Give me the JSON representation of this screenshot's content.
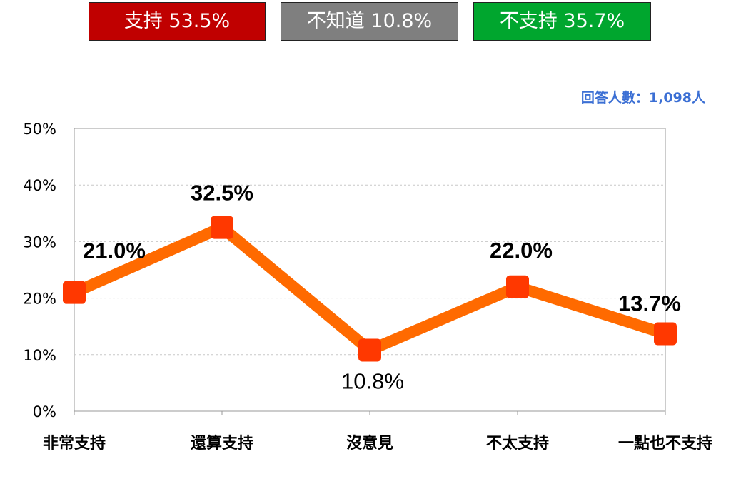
{
  "summary": {
    "support": "支持 53.5%",
    "unknown": "不知道 10.8%",
    "oppose": "不支持 35.7%"
  },
  "respondents": "回答人數：1,098人",
  "colors": {
    "support_box": "#c00000",
    "unknown_box": "#7f7f7f",
    "oppose_box": "#00a62e",
    "series_line": "#ff6a00",
    "marker": "#ff3800",
    "respondents_text": "#3b6fd4",
    "gridline": "#c8c8c8",
    "text": "#000000"
  },
  "chart_data": {
    "type": "line",
    "categories": [
      "非常支持",
      "還算支持",
      "沒意見",
      "不太支持",
      "一點也不支持"
    ],
    "series": [
      {
        "values": [
          21.0,
          32.5,
          10.8,
          22.0,
          13.7
        ],
        "labels": [
          "21.0%",
          "32.5%",
          "10.8%",
          "22.0%",
          "13.7%"
        ]
      }
    ],
    "yticks": [
      "0%",
      "10%",
      "20%",
      "30%",
      "40%",
      "50%"
    ],
    "ylim": [
      0,
      50
    ],
    "grid": true,
    "title": "",
    "xlabel": "",
    "ylabel": ""
  }
}
